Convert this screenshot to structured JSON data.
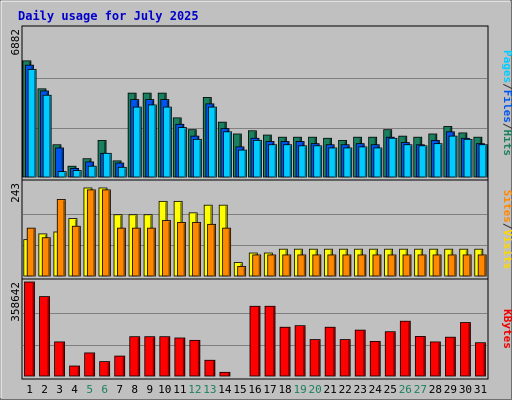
{
  "chart_data": {
    "type": "bar",
    "title": "Daily usage for July 2025",
    "categories": [
      "1",
      "2",
      "3",
      "4",
      "5",
      "6",
      "7",
      "8",
      "9",
      "10",
      "11",
      "12",
      "13",
      "14",
      "15",
      "16",
      "17",
      "18",
      "19",
      "20",
      "21",
      "22",
      "23",
      "24",
      "25",
      "26",
      "27",
      "28",
      "29",
      "30",
      "31"
    ],
    "weekend_days": [
      "5",
      "6",
      "12",
      "13",
      "19",
      "20",
      "26",
      "27"
    ],
    "panels": [
      {
        "id": "hits-files-pages",
        "max_label": "6882",
        "ylim": [
          0,
          6882
        ],
        "label_parts": [
          {
            "text": "Pages",
            "color": "#00ccff"
          },
          {
            "text": "/",
            "color": "#333333"
          },
          {
            "text": "Files",
            "color": "#0055ee"
          },
          {
            "text": "/",
            "color": "#333333"
          },
          {
            "text": "Hits",
            "color": "#1a8060"
          }
        ],
        "series": [
          {
            "name": "Hits",
            "color": "#1a8060",
            "values": [
              5400,
              4100,
              1500,
              500,
              850,
              1700,
              750,
              3900,
              3900,
              3900,
              2750,
              2200,
              3700,
              2550,
              2000,
              2150,
              1950,
              1850,
              1850,
              1850,
              1800,
              1700,
              1850,
              1850,
              2200,
              1900,
              1850,
              2000,
              2350,
              2050,
              1850
            ]
          },
          {
            "name": "Files",
            "color": "#0055ee",
            "values": [
              5200,
              4000,
              1350,
              400,
              700,
              1100,
              650,
              3600,
              3600,
              3600,
              2450,
              1900,
              3400,
              2250,
              1400,
              1800,
              1650,
              1650,
              1650,
              1550,
              1500,
              1500,
              1550,
              1500,
              1850,
              1600,
              1500,
              1700,
              2100,
              1800,
              1550
            ]
          },
          {
            "name": "Pages",
            "color": "#00ccff",
            "values": [
              5000,
              3800,
              250,
              300,
              500,
              1100,
              450,
              3250,
              3350,
              3250,
              2300,
              1750,
              3250,
              2100,
              1250,
              1700,
              1500,
              1500,
              1450,
              1450,
              1350,
              1350,
              1400,
              1350,
              1800,
              1500,
              1450,
              1550,
              1900,
              1750,
              1500
            ]
          }
        ]
      },
      {
        "id": "visits-sites",
        "max_label": "243",
        "ylim": [
          0,
          243
        ],
        "label_parts": [
          {
            "text": "Sites",
            "color": "#ff8800"
          },
          {
            "text": "/",
            "color": "#333333"
          },
          {
            "text": "Visits",
            "color": "#ffd700"
          }
        ],
        "series": [
          {
            "name": "Visits",
            "color": "#ffff00",
            "values": [
              95,
              110,
              115,
              150,
              230,
              230,
              160,
              160,
              160,
              195,
              195,
              165,
              185,
              185,
              35,
              60,
              60,
              70,
              70,
              70,
              70,
              70,
              70,
              70,
              70,
              70,
              70,
              70,
              70,
              70,
              70
            ]
          },
          {
            "name": "Sites",
            "color": "#ff8800",
            "values": [
              125,
              100,
              200,
              130,
              225,
              225,
              125,
              125,
              125,
              145,
              140,
              140,
              135,
              125,
              25,
              55,
              55,
              55,
              55,
              55,
              55,
              55,
              55,
              55,
              55,
              55,
              55,
              55,
              55,
              55,
              55
            ]
          }
        ]
      },
      {
        "id": "kbytes",
        "max_label": "358642",
        "ylim": [
          0,
          358642
        ],
        "label_parts": [
          {
            "text": "KBytes",
            "color": "#ee0000"
          }
        ],
        "series": [
          {
            "name": "KBytes",
            "color": "#ff0000",
            "values": [
              358642,
              303000,
              130000,
              38000,
              88000,
              55000,
              76000,
              150000,
              150000,
              150000,
              145000,
              136000,
              60000,
              14000,
              0,
              266000,
              266000,
              186000,
              192000,
              139000,
              186000,
              139000,
              175000,
              132000,
              169000,
              209000,
              151000,
              130000,
              148000,
              204000,
              127000
            ]
          }
        ]
      }
    ]
  }
}
